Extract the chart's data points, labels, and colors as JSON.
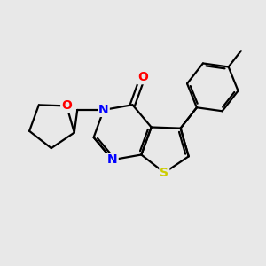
{
  "background_color": "#e8e8e8",
  "bond_color": "#000000",
  "atom_colors": {
    "O": "#ff0000",
    "N": "#0000ff",
    "S": "#cccc00",
    "C": "#000000"
  },
  "figsize": [
    3.0,
    3.0
  ],
  "dpi": 100
}
